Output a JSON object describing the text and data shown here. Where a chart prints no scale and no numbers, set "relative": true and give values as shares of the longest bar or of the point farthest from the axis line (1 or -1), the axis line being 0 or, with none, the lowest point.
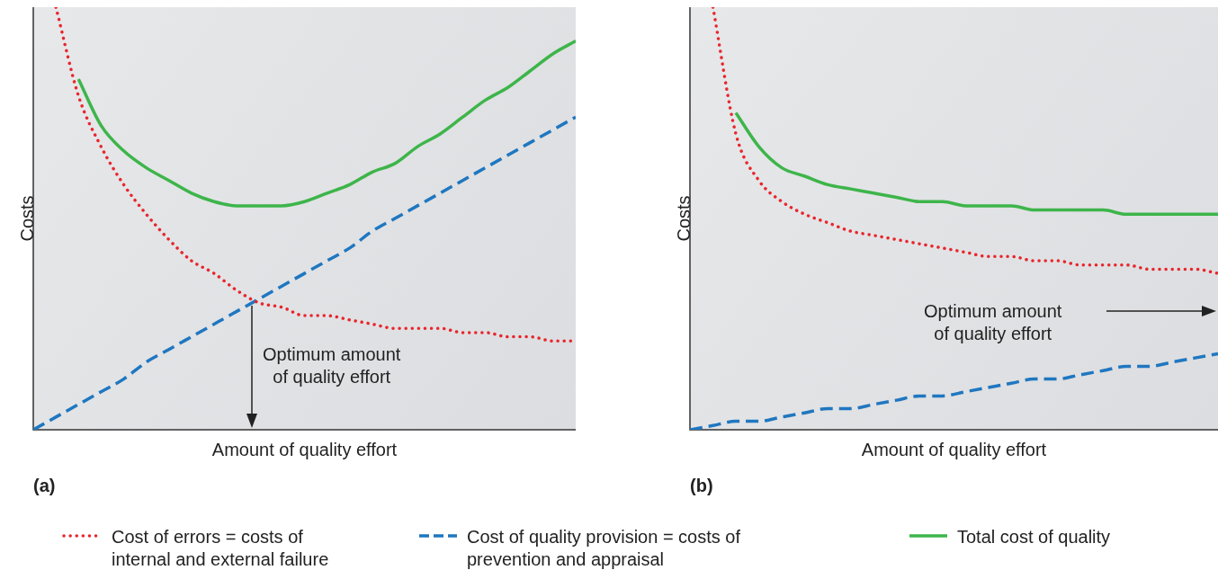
{
  "chart_data": [
    {
      "type": "line",
      "title": "(a)",
      "xlabel": "Amount of quality effort",
      "ylabel": "Costs",
      "relative": true,
      "marker": "none",
      "legend": "bottom",
      "categories": [
        null,
        null,
        null,
        null,
        null,
        null,
        null,
        null,
        null,
        null,
        null,
        null,
        null,
        null,
        null,
        null,
        null,
        null,
        null,
        null,
        null,
        null,
        null,
        null,
        null
      ],
      "annotations": [
        "Optimum amount\nof quality effort"
      ],
      "series": [
        {
          "name": "Cost of errors = costs of\ninternal and external failure",
          "color": "#e8262c",
          "line_style": "dotted",
          "values": [
            null,
            1,
            0.79,
            0.67,
            0.58,
            0.51,
            0.45,
            0.4,
            0.37,
            0.33,
            0.3,
            0.29,
            0.27,
            0.27,
            0.26,
            0.25,
            0.24,
            0.24,
            0.24,
            0.23,
            0.23,
            0.22,
            0.22,
            0.21,
            0.21
          ]
        },
        {
          "name": "Cost of quality provision = costs of\nprevention and appraisal",
          "color": "#1f77c0",
          "line_style": "dashed",
          "values": [
            0,
            0.03,
            0.06,
            0.09,
            0.12,
            0.16,
            0.19,
            0.22,
            0.25,
            0.28,
            0.31,
            0.34,
            0.37,
            0.4,
            0.43,
            0.47,
            0.5,
            0.53,
            0.56,
            0.59,
            0.62,
            0.65,
            0.68,
            0.71,
            0.74
          ]
        },
        {
          "name": "Total cost of quality",
          "color": "#3db54a",
          "line_style": "solid",
          "values": [
            null,
            null,
            0.83,
            0.72,
            0.66,
            0.62,
            0.59,
            0.56,
            0.54,
            0.53,
            0.53,
            0.53,
            0.54,
            0.56,
            0.58,
            0.61,
            0.63,
            0.67,
            0.7,
            0.74,
            0.78,
            0.81,
            0.85,
            0.89,
            0.92
          ]
        }
      ]
    },
    {
      "type": "line",
      "title": "(b)",
      "xlabel": "Amount of quality effort",
      "ylabel": "Costs",
      "relative": true,
      "marker": "none",
      "categories": [
        null,
        null,
        null,
        null,
        null,
        null,
        null,
        null,
        null,
        null,
        null,
        null,
        null,
        null,
        null,
        null,
        null,
        null,
        null,
        null,
        null,
        null,
        null,
        null
      ],
      "annotations": [
        "Optimum amount\nof quality effort"
      ],
      "series": [
        {
          "color": "#e8262c",
          "line_style": "dotted",
          "values": [
            null,
            1,
            0.7,
            0.59,
            0.54,
            0.51,
            0.49,
            0.47,
            0.46,
            0.45,
            0.44,
            0.43,
            0.42,
            0.41,
            0.41,
            0.4,
            0.4,
            0.39,
            0.39,
            0.39,
            0.38,
            0.38,
            0.38,
            0.37
          ]
        },
        {
          "color": "#1f77c0",
          "line_style": "dashed",
          "values": [
            0,
            0.01,
            0.02,
            0.02,
            0.03,
            0.04,
            0.05,
            0.05,
            0.06,
            0.07,
            0.08,
            0.08,
            0.09,
            0.1,
            0.11,
            0.12,
            0.12,
            0.13,
            0.14,
            0.15,
            0.15,
            0.16,
            0.17,
            0.18
          ]
        },
        {
          "color": "#3db54a",
          "line_style": "solid",
          "values": [
            null,
            null,
            0.75,
            0.67,
            0.62,
            0.6,
            0.58,
            0.57,
            0.56,
            0.55,
            0.54,
            0.54,
            0.53,
            0.53,
            0.53,
            0.52,
            0.52,
            0.52,
            0.52,
            0.51,
            0.51,
            0.51,
            0.51,
            0.51
          ]
        }
      ]
    }
  ]
}
